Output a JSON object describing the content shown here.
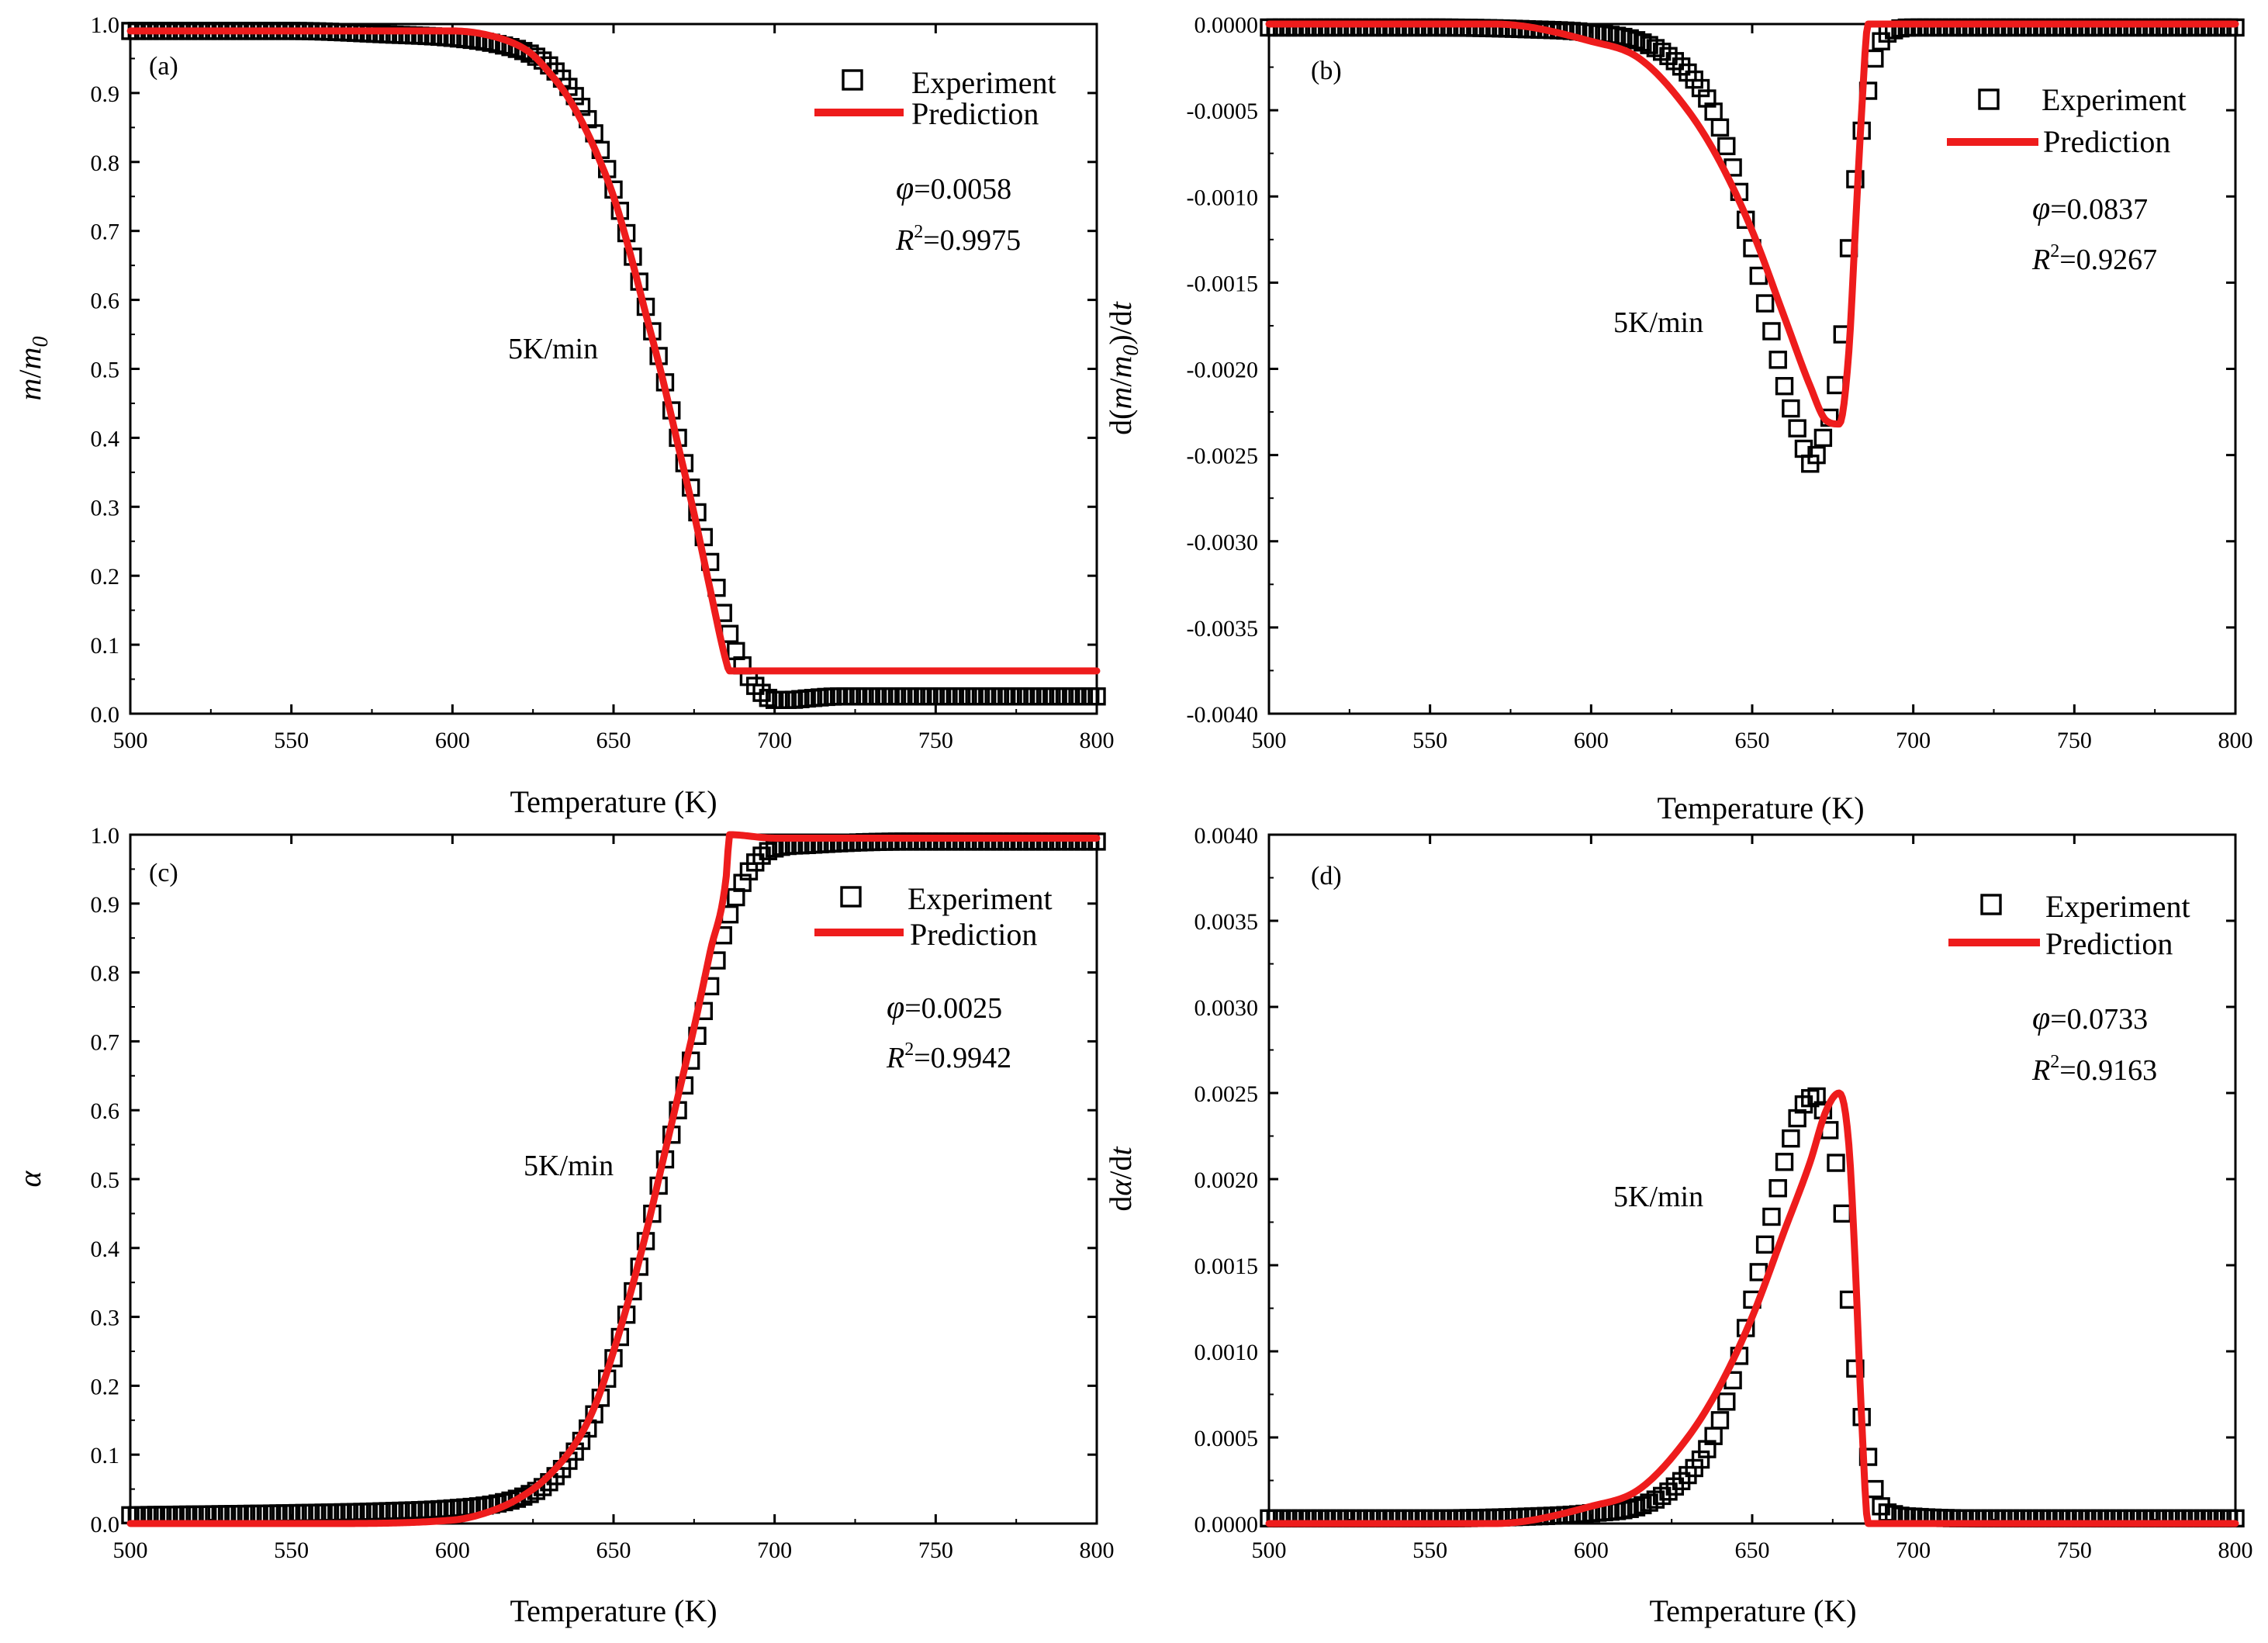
{
  "colors": {
    "experiment": "#000000",
    "prediction": "#ee1c1c",
    "background": "#ffffff"
  },
  "chart_data": [
    {
      "type": "scatter+line",
      "panel_label": "(a)",
      "xlabel": "Temperature (K)",
      "ylabel": "m/m0",
      "xlim": [
        500,
        800
      ],
      "ylim": [
        0.0,
        1.0
      ],
      "xticks": [
        "500",
        "550",
        "600",
        "650",
        "700",
        "750",
        "800"
      ],
      "yticks": [
        "0.0",
        "0.1",
        "0.2",
        "0.3",
        "0.4",
        "0.5",
        "0.6",
        "0.7",
        "0.8",
        "0.9",
        "1.0"
      ],
      "legend": [
        "Experiment",
        "Prediction"
      ],
      "legend_position": "top-right",
      "phi_label": "φ",
      "phi_value": "=0.0058",
      "r2_label": "R",
      "r2_exponent": "2",
      "r2_value": "=0.9975",
      "rate_label": "5K/min",
      "series": [
        {
          "name": "Experiment",
          "style": "open-square",
          "x": [
            500,
            550,
            580,
            600,
            615,
            625,
            630,
            635,
            640,
            645,
            650,
            655,
            660,
            665,
            670,
            675,
            680,
            685,
            690,
            695,
            700,
            705,
            710,
            720,
            740,
            760,
            780,
            800
          ],
          "y": [
            0.99,
            0.99,
            0.985,
            0.98,
            0.97,
            0.955,
            0.94,
            0.915,
            0.88,
            0.83,
            0.76,
            0.68,
            0.59,
            0.5,
            0.4,
            0.31,
            0.22,
            0.13,
            0.07,
            0.035,
            0.02,
            0.02,
            0.022,
            0.025,
            0.025,
            0.025,
            0.025,
            0.025
          ]
        },
        {
          "name": "Prediction",
          "style": "line",
          "x": [
            500,
            560,
            580,
            600,
            610,
            620,
            625,
            630,
            635,
            640,
            645,
            650,
            655,
            660,
            665,
            670,
            675,
            680,
            685,
            686,
            700,
            750,
            800
          ],
          "y": [
            0.99,
            0.99,
            0.99,
            0.99,
            0.985,
            0.97,
            0.955,
            0.93,
            0.9,
            0.86,
            0.81,
            0.75,
            0.67,
            0.58,
            0.49,
            0.39,
            0.29,
            0.18,
            0.075,
            0.062,
            0.062,
            0.062,
            0.062
          ]
        }
      ]
    },
    {
      "type": "scatter+line",
      "panel_label": "(b)",
      "xlabel": "Temperature (K)",
      "ylabel": "d(m/m0)/dt",
      "xlim": [
        500,
        800
      ],
      "ylim": [
        -0.004,
        0.0
      ],
      "xticks": [
        "500",
        "550",
        "600",
        "650",
        "700",
        "750",
        "800"
      ],
      "yticks": [
        "-0.0040",
        "-0.0035",
        "-0.0030",
        "-0.0025",
        "-0.0020",
        "-0.0015",
        "-0.0010",
        "-0.0005",
        "0.0000"
      ],
      "legend": [
        "Experiment",
        "Prediction"
      ],
      "legend_position": "top-right",
      "phi_label": "φ",
      "phi_value": "=0.0837",
      "r2_label": "R",
      "r2_exponent": "2",
      "r2_value": "=0.9267",
      "rate_label": "5K/min",
      "series": [
        {
          "name": "Experiment",
          "style": "open-square",
          "x": [
            500,
            550,
            580,
            600,
            615,
            625,
            635,
            640,
            645,
            650,
            655,
            660,
            665,
            668,
            670,
            672,
            675,
            678,
            680,
            682,
            685,
            688,
            690,
            695,
            700,
            720,
            760,
            800
          ],
          "y": [
            -2e-05,
            -2e-05,
            -3e-05,
            -5e-05,
            -0.0001,
            -0.0002,
            -0.0004,
            -0.0006,
            -0.0009,
            -0.0013,
            -0.0017,
            -0.0021,
            -0.0024,
            -0.00255,
            -0.0025,
            -0.0024,
            -0.0022,
            -0.0018,
            -0.0013,
            -0.0009,
            -0.0005,
            -0.0002,
            -0.0001,
            -3e-05,
            -2e-05,
            -2e-05,
            -2e-05,
            -2e-05
          ]
        },
        {
          "name": "Prediction",
          "style": "line",
          "x": [
            500,
            570,
            600,
            615,
            630,
            640,
            650,
            660,
            668,
            673,
            677,
            680,
            682,
            684,
            686,
            700,
            750,
            800
          ],
          "y": [
            0.0,
            0.0,
            -0.0001,
            -0.0002,
            -0.0005,
            -0.0008,
            -0.0012,
            -0.0017,
            -0.0021,
            -0.0023,
            -0.00232,
            -0.0019,
            -0.0012,
            -0.0005,
            0.0,
            0.0,
            0.0,
            0.0
          ]
        }
      ]
    },
    {
      "type": "scatter+line",
      "panel_label": "(c)",
      "xlabel": "Temperature (K)",
      "ylabel": "α",
      "xlim": [
        500,
        800
      ],
      "ylim": [
        0.0,
        1.0
      ],
      "xticks": [
        "500",
        "550",
        "600",
        "650",
        "700",
        "750",
        "800"
      ],
      "yticks": [
        "0.0",
        "0.1",
        "0.2",
        "0.3",
        "0.4",
        "0.5",
        "0.6",
        "0.7",
        "0.8",
        "0.9",
        "1.0"
      ],
      "legend": [
        "Experiment",
        "Prediction"
      ],
      "legend_position": "top-right",
      "phi_label": "φ",
      "phi_value": "=0.0025",
      "r2_label": "R",
      "r2_exponent": "2",
      "r2_value": "=0.9942",
      "rate_label": "5K/min",
      "series": [
        {
          "name": "Experiment",
          "style": "open-square",
          "x": [
            500,
            550,
            580,
            600,
            615,
            625,
            630,
            635,
            640,
            645,
            650,
            655,
            660,
            665,
            670,
            675,
            680,
            685,
            690,
            695,
            700,
            710,
            740,
            770,
            800
          ],
          "y": [
            0.012,
            0.015,
            0.018,
            0.022,
            0.03,
            0.045,
            0.06,
            0.085,
            0.12,
            0.17,
            0.24,
            0.32,
            0.41,
            0.51,
            0.6,
            0.69,
            0.78,
            0.87,
            0.93,
            0.965,
            0.98,
            0.985,
            0.99,
            0.99,
            0.99
          ]
        },
        {
          "name": "Prediction",
          "style": "line",
          "x": [
            500,
            560,
            600,
            610,
            620,
            630,
            640,
            645,
            650,
            655,
            660,
            665,
            670,
            675,
            680,
            685,
            686,
            700,
            750,
            800
          ],
          "y": [
            0.0,
            0.0,
            0.005,
            0.015,
            0.035,
            0.07,
            0.13,
            0.18,
            0.25,
            0.33,
            0.42,
            0.52,
            0.62,
            0.72,
            0.83,
            0.94,
            1.0,
            0.995,
            0.995,
            0.995
          ]
        }
      ]
    },
    {
      "type": "scatter+line",
      "panel_label": "(d)",
      "xlabel": "Temperature (K)",
      "ylabel": "dα/dt",
      "xlim": [
        500,
        800
      ],
      "ylim": [
        0.0,
        0.004
      ],
      "xticks": [
        "500",
        "550",
        "600",
        "650",
        "700",
        "750",
        "800"
      ],
      "yticks": [
        "0.0000",
        "0.0005",
        "0.0010",
        "0.0015",
        "0.0020",
        "0.0025",
        "0.0030",
        "0.0035",
        "0.0040"
      ],
      "legend": [
        "Experiment",
        "Prediction"
      ],
      "legend_position": "top-right",
      "phi_label": "φ",
      "phi_value": "=0.0733",
      "r2_label": "R",
      "r2_exponent": "2",
      "r2_value": "=0.9163",
      "rate_label": "5K/min",
      "series": [
        {
          "name": "Experiment",
          "style": "open-square",
          "x": [
            500,
            550,
            580,
            600,
            615,
            625,
            635,
            640,
            645,
            650,
            655,
            660,
            665,
            668,
            670,
            672,
            675,
            678,
            680,
            682,
            685,
            688,
            690,
            695,
            700,
            720,
            760,
            800
          ],
          "y": [
            3e-05,
            3e-05,
            4e-05,
            6e-05,
            0.0001,
            0.0002,
            0.0004,
            0.0006,
            0.0009,
            0.0013,
            0.0017,
            0.0021,
            0.0024,
            0.00247,
            0.00248,
            0.0024,
            0.0022,
            0.0018,
            0.0013,
            0.0009,
            0.0005,
            0.0002,
            0.0001,
            5e-05,
            4e-05,
            3e-05,
            3e-05,
            3e-05
          ]
        },
        {
          "name": "Prediction",
          "style": "line",
          "x": [
            500,
            570,
            600,
            615,
            630,
            640,
            650,
            660,
            668,
            673,
            677,
            680,
            682,
            684,
            686,
            700,
            750,
            800
          ],
          "y": [
            0.0,
            0.0,
            0.0001,
            0.0002,
            0.0005,
            0.0008,
            0.0012,
            0.0017,
            0.0021,
            0.0024,
            0.0025,
            0.0022,
            0.0015,
            0.0006,
            0.0,
            0.0,
            0.0,
            0.0
          ]
        }
      ]
    }
  ]
}
